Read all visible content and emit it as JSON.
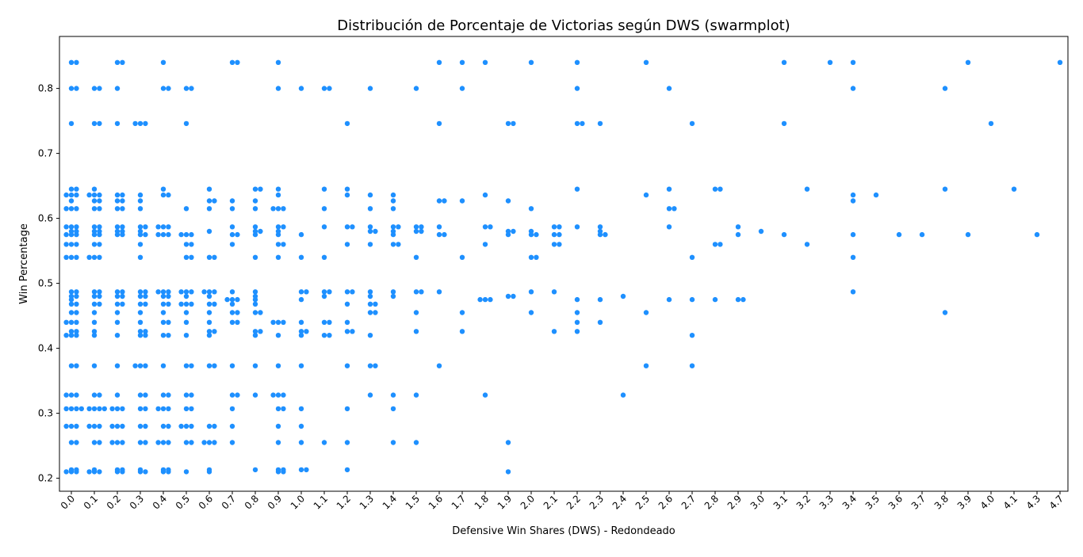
{
  "chart_data": {
    "type": "scatter",
    "subtype": "swarmplot",
    "title": "Distribución de Porcentaje de Victorias según DWS (swarmplot)",
    "xlabel": "Defensive Win Shares (DWS) - Redondeado",
    "ylabel": "Win Percentage",
    "point_color": "#1e90ff",
    "grid": false,
    "legend": "none",
    "ylim": [
      0.18,
      0.88
    ],
    "yticks": [
      0.2,
      0.3,
      0.4,
      0.5,
      0.6,
      0.7,
      0.8
    ],
    "categories": [
      "0.0",
      "0.1",
      "0.2",
      "0.3",
      "0.4",
      "0.5",
      "0.6",
      "0.7",
      "0.8",
      "0.9",
      "1.0",
      "1.1",
      "1.2",
      "1.3",
      "1.4",
      "1.5",
      "1.6",
      "1.7",
      "1.8",
      "1.9",
      "2.0",
      "2.1",
      "2.2",
      "2.3",
      "2.4",
      "2.5",
      "2.6",
      "2.7",
      "2.8",
      "2.9",
      "3.0",
      "3.1",
      "3.2",
      "3.3",
      "3.4",
      "3.5",
      "3.6",
      "3.7",
      "3.8",
      "3.9",
      "4.0",
      "4.1",
      "4.3",
      "4.7"
    ],
    "swarm": [
      {
        "category": "0.0",
        "values": [
          0.84,
          0.84,
          0.8,
          0.8,
          0.746,
          0.645,
          0.645,
          0.636,
          0.636,
          0.636,
          0.627,
          0.615,
          0.615,
          0.615,
          0.587,
          0.587,
          0.587,
          0.58,
          0.58,
          0.575,
          0.575,
          0.575,
          0.56,
          0.56,
          0.56,
          0.54,
          0.54,
          0.54,
          0.487,
          0.487,
          0.48,
          0.48,
          0.475,
          0.468,
          0.468,
          0.455,
          0.455,
          0.44,
          0.44,
          0.44,
          0.426,
          0.426,
          0.42,
          0.42,
          0.42,
          0.373,
          0.373,
          0.328,
          0.328,
          0.328,
          0.307,
          0.307,
          0.307,
          0.307,
          0.28,
          0.28,
          0.28,
          0.255,
          0.255,
          0.213,
          0.213,
          0.21,
          0.21,
          0.21
        ]
      },
      {
        "category": "0.1",
        "values": [
          0.8,
          0.8,
          0.746,
          0.746,
          0.645,
          0.636,
          0.636,
          0.636,
          0.627,
          0.627,
          0.615,
          0.615,
          0.587,
          0.587,
          0.58,
          0.58,
          0.575,
          0.575,
          0.56,
          0.56,
          0.54,
          0.54,
          0.54,
          0.487,
          0.487,
          0.48,
          0.48,
          0.468,
          0.468,
          0.455,
          0.44,
          0.426,
          0.42,
          0.373,
          0.328,
          0.328,
          0.307,
          0.307,
          0.307,
          0.307,
          0.28,
          0.28,
          0.28,
          0.255,
          0.255,
          0.213,
          0.21,
          0.21,
          0.21
        ]
      },
      {
        "category": "0.2",
        "values": [
          0.84,
          0.84,
          0.8,
          0.746,
          0.636,
          0.636,
          0.627,
          0.627,
          0.615,
          0.615,
          0.587,
          0.587,
          0.58,
          0.58,
          0.575,
          0.575,
          0.487,
          0.487,
          0.48,
          0.48,
          0.468,
          0.468,
          0.455,
          0.44,
          0.42,
          0.373,
          0.328,
          0.307,
          0.307,
          0.307,
          0.28,
          0.28,
          0.28,
          0.255,
          0.255,
          0.255,
          0.213,
          0.213,
          0.21,
          0.21
        ]
      },
      {
        "category": "0.3",
        "values": [
          0.746,
          0.746,
          0.746,
          0.636,
          0.627,
          0.615,
          0.587,
          0.587,
          0.58,
          0.575,
          0.575,
          0.56,
          0.54,
          0.487,
          0.487,
          0.48,
          0.48,
          0.468,
          0.468,
          0.455,
          0.44,
          0.426,
          0.426,
          0.42,
          0.42,
          0.373,
          0.373,
          0.373,
          0.328,
          0.328,
          0.307,
          0.307,
          0.28,
          0.28,
          0.255,
          0.255,
          0.213,
          0.21,
          0.21
        ]
      },
      {
        "category": "0.4",
        "values": [
          0.84,
          0.8,
          0.8,
          0.645,
          0.636,
          0.636,
          0.587,
          0.587,
          0.587,
          0.575,
          0.575,
          0.575,
          0.487,
          0.487,
          0.487,
          0.48,
          0.48,
          0.468,
          0.468,
          0.455,
          0.44,
          0.44,
          0.42,
          0.42,
          0.373,
          0.328,
          0.328,
          0.307,
          0.307,
          0.307,
          0.28,
          0.28,
          0.255,
          0.255,
          0.255,
          0.213,
          0.213,
          0.21,
          0.21
        ]
      },
      {
        "category": "0.5",
        "values": [
          0.8,
          0.8,
          0.746,
          0.615,
          0.575,
          0.575,
          0.575,
          0.56,
          0.56,
          0.54,
          0.54,
          0.487,
          0.487,
          0.487,
          0.48,
          0.468,
          0.468,
          0.468,
          0.455,
          0.44,
          0.42,
          0.373,
          0.373,
          0.328,
          0.328,
          0.307,
          0.307,
          0.28,
          0.28,
          0.28,
          0.255,
          0.255,
          0.21
        ]
      },
      {
        "category": "0.6",
        "values": [
          0.645,
          0.627,
          0.627,
          0.615,
          0.58,
          0.54,
          0.54,
          0.487,
          0.487,
          0.487,
          0.48,
          0.468,
          0.468,
          0.455,
          0.44,
          0.426,
          0.426,
          0.42,
          0.373,
          0.373,
          0.28,
          0.28,
          0.255,
          0.255,
          0.255,
          0.213,
          0.21
        ]
      },
      {
        "category": "0.7",
        "values": [
          0.84,
          0.84,
          0.627,
          0.615,
          0.587,
          0.575,
          0.575,
          0.56,
          0.487,
          0.475,
          0.475,
          0.475,
          0.468,
          0.455,
          0.455,
          0.44,
          0.44,
          0.373,
          0.328,
          0.328,
          0.307,
          0.28,
          0.255
        ]
      },
      {
        "category": "0.8",
        "values": [
          0.645,
          0.645,
          0.627,
          0.615,
          0.587,
          0.58,
          0.58,
          0.575,
          0.54,
          0.487,
          0.48,
          0.475,
          0.468,
          0.455,
          0.455,
          0.426,
          0.426,
          0.42,
          0.373,
          0.328,
          0.213
        ]
      },
      {
        "category": "0.9",
        "values": [
          0.84,
          0.8,
          0.645,
          0.636,
          0.615,
          0.615,
          0.615,
          0.587,
          0.587,
          0.58,
          0.575,
          0.56,
          0.56,
          0.54,
          0.44,
          0.44,
          0.44,
          0.42,
          0.373,
          0.328,
          0.328,
          0.328,
          0.307,
          0.307,
          0.28,
          0.255,
          0.213,
          0.213,
          0.21,
          0.21
        ]
      },
      {
        "category": "1.0",
        "values": [
          0.8,
          0.575,
          0.54,
          0.487,
          0.487,
          0.475,
          0.44,
          0.426,
          0.426,
          0.42,
          0.373,
          0.307,
          0.28,
          0.255,
          0.213,
          0.213
        ]
      },
      {
        "category": "1.1",
        "values": [
          0.8,
          0.8,
          0.645,
          0.615,
          0.587,
          0.54,
          0.487,
          0.487,
          0.48,
          0.44,
          0.44,
          0.42,
          0.42,
          0.255
        ]
      },
      {
        "category": "1.2",
        "values": [
          0.746,
          0.645,
          0.636,
          0.587,
          0.587,
          0.56,
          0.487,
          0.487,
          0.468,
          0.44,
          0.426,
          0.426,
          0.373,
          0.307,
          0.255,
          0.213
        ]
      },
      {
        "category": "1.3",
        "values": [
          0.8,
          0.636,
          0.615,
          0.587,
          0.58,
          0.58,
          0.56,
          0.487,
          0.48,
          0.468,
          0.468,
          0.455,
          0.455,
          0.42,
          0.373,
          0.373,
          0.328
        ]
      },
      {
        "category": "1.4",
        "values": [
          0.636,
          0.627,
          0.615,
          0.587,
          0.587,
          0.58,
          0.575,
          0.56,
          0.56,
          0.487,
          0.48,
          0.328,
          0.307,
          0.255
        ]
      },
      {
        "category": "1.5",
        "values": [
          0.8,
          0.587,
          0.587,
          0.58,
          0.58,
          0.54,
          0.487,
          0.487,
          0.455,
          0.426,
          0.328,
          0.255
        ]
      },
      {
        "category": "1.6",
        "values": [
          0.84,
          0.746,
          0.627,
          0.627,
          0.587,
          0.575,
          0.575,
          0.487,
          0.373
        ]
      },
      {
        "category": "1.7",
        "values": [
          0.84,
          0.8,
          0.627,
          0.54,
          0.455,
          0.426
        ]
      },
      {
        "category": "1.8",
        "values": [
          0.84,
          0.636,
          0.587,
          0.587,
          0.56,
          0.475,
          0.475,
          0.475,
          0.328
        ]
      },
      {
        "category": "1.9",
        "values": [
          0.746,
          0.746,
          0.627,
          0.58,
          0.58,
          0.575,
          0.48,
          0.48,
          0.255,
          0.21
        ]
      },
      {
        "category": "2.0",
        "values": [
          0.84,
          0.615,
          0.58,
          0.575,
          0.575,
          0.54,
          0.54,
          0.487,
          0.455
        ]
      },
      {
        "category": "2.1",
        "values": [
          0.587,
          0.587,
          0.575,
          0.575,
          0.56,
          0.56,
          0.487,
          0.426
        ]
      },
      {
        "category": "2.2",
        "values": [
          0.84,
          0.8,
          0.746,
          0.746,
          0.645,
          0.587,
          0.475,
          0.455,
          0.44,
          0.426
        ]
      },
      {
        "category": "2.3",
        "values": [
          0.746,
          0.587,
          0.58,
          0.575,
          0.575,
          0.475,
          0.44
        ]
      },
      {
        "category": "2.4",
        "values": [
          0.48,
          0.328
        ]
      },
      {
        "category": "2.5",
        "values": [
          0.84,
          0.636,
          0.455,
          0.373
        ]
      },
      {
        "category": "2.6",
        "values": [
          0.8,
          0.645,
          0.615,
          0.615,
          0.587,
          0.475
        ]
      },
      {
        "category": "2.7",
        "values": [
          0.746,
          0.54,
          0.475,
          0.42,
          0.373
        ]
      },
      {
        "category": "2.8",
        "values": [
          0.645,
          0.645,
          0.56,
          0.56,
          0.475
        ]
      },
      {
        "category": "2.9",
        "values": [
          0.587,
          0.575,
          0.475,
          0.475
        ]
      },
      {
        "category": "3.0",
        "values": [
          0.58
        ]
      },
      {
        "category": "3.1",
        "values": [
          0.84,
          0.746,
          0.575
        ]
      },
      {
        "category": "3.2",
        "values": [
          0.645,
          0.56
        ]
      },
      {
        "category": "3.3",
        "values": [
          0.84
        ]
      },
      {
        "category": "3.4",
        "values": [
          0.84,
          0.8,
          0.636,
          0.627,
          0.575,
          0.54,
          0.487
        ]
      },
      {
        "category": "3.5",
        "values": [
          0.636
        ]
      },
      {
        "category": "3.6",
        "values": [
          0.575
        ]
      },
      {
        "category": "3.7",
        "values": [
          0.575
        ]
      },
      {
        "category": "3.8",
        "values": [
          0.8,
          0.645,
          0.455
        ]
      },
      {
        "category": "3.9",
        "values": [
          0.84,
          0.575
        ]
      },
      {
        "category": "4.0",
        "values": [
          0.746
        ]
      },
      {
        "category": "4.1",
        "values": [
          0.645
        ]
      },
      {
        "category": "4.3",
        "values": [
          0.575
        ]
      },
      {
        "category": "4.7",
        "values": [
          0.84
        ]
      }
    ]
  }
}
